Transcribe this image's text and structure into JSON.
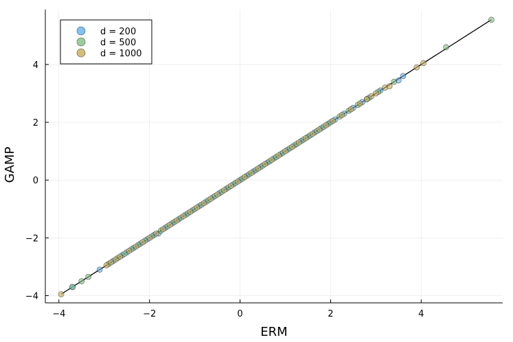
{
  "chart_data": {
    "type": "scatter",
    "title": "",
    "xlabel": "ERM",
    "ylabel": "GAMP",
    "xlim": [
      -4.3,
      5.8
    ],
    "ylim": [
      -4.25,
      5.9
    ],
    "xticks": [
      -4,
      -2,
      0,
      2,
      4
    ],
    "yticks": [
      -4,
      -2,
      0,
      2,
      4
    ],
    "xtick_labels": [
      "−4",
      "−2",
      "0",
      "2",
      "4"
    ],
    "ytick_labels": [
      "−4",
      "−2",
      "0",
      "2",
      "4"
    ],
    "grid": true,
    "legend": "top-left",
    "reference_line": {
      "x": [
        -3.95,
        5.55
      ],
      "y": [
        -3.95,
        5.55
      ],
      "color": "#000000"
    },
    "series": [
      {
        "name": "d = 200",
        "color": "#5fb3f0",
        "x": [
          -3.7,
          -3.1,
          -2.8,
          -2.6,
          -2.5,
          -2.35,
          -2.2,
          -2.05,
          -1.9,
          -1.8,
          -1.65,
          -1.5,
          -1.35,
          -1.2,
          -1.05,
          -0.9,
          -0.75,
          -0.6,
          -0.45,
          -0.3,
          -0.15,
          0.0,
          0.15,
          0.3,
          0.45,
          0.6,
          0.75,
          0.9,
          1.05,
          1.2,
          1.35,
          1.5,
          1.65,
          1.8,
          1.95,
          2.1,
          2.3,
          2.5,
          2.7,
          2.85,
          3.1,
          3.5,
          3.6
        ],
        "y": [
          -3.7,
          -3.1,
          -2.8,
          -2.6,
          -2.5,
          -2.35,
          -2.2,
          -2.05,
          -1.9,
          -1.85,
          -1.65,
          -1.5,
          -1.35,
          -1.2,
          -1.05,
          -0.9,
          -0.75,
          -0.6,
          -0.45,
          -0.3,
          -0.15,
          0.0,
          0.15,
          0.3,
          0.45,
          0.6,
          0.75,
          0.9,
          1.05,
          1.2,
          1.35,
          1.5,
          1.65,
          1.8,
          1.95,
          2.1,
          2.3,
          2.5,
          2.7,
          2.85,
          3.1,
          3.45,
          3.6
        ]
      },
      {
        "name": "d = 500",
        "color": "#80c080",
        "x": [
          -3.7,
          -3.35,
          -3.5,
          -2.9,
          -2.7,
          -2.55,
          -2.4,
          -2.25,
          -2.1,
          -1.95,
          -1.75,
          -1.6,
          -1.45,
          -1.3,
          -1.15,
          -1.0,
          -0.85,
          -0.7,
          -0.55,
          -0.4,
          -0.25,
          -0.1,
          0.05,
          0.2,
          0.35,
          0.5,
          0.65,
          0.8,
          0.95,
          1.1,
          1.25,
          1.4,
          1.55,
          1.7,
          1.85,
          2.0,
          2.2,
          2.4,
          2.6,
          2.8,
          3.05,
          3.4,
          4.55,
          5.55
        ],
        "y": [
          -3.7,
          -3.35,
          -3.5,
          -2.9,
          -2.7,
          -2.55,
          -2.4,
          -2.25,
          -2.1,
          -1.95,
          -1.75,
          -1.6,
          -1.45,
          -1.3,
          -1.15,
          -1.0,
          -0.85,
          -0.7,
          -0.55,
          -0.4,
          -0.25,
          -0.1,
          0.05,
          0.2,
          0.35,
          0.5,
          0.65,
          0.8,
          0.95,
          1.1,
          1.25,
          1.4,
          1.55,
          1.7,
          1.85,
          2.0,
          2.2,
          2.4,
          2.6,
          2.8,
          3.05,
          3.4,
          4.6,
          5.55
        ]
      },
      {
        "name": "d = 1000",
        "color": "#c8ac58",
        "x": [
          -3.95,
          -2.95,
          -2.85,
          -2.75,
          -2.65,
          -2.45,
          -2.3,
          -2.15,
          -2.0,
          -1.85,
          -1.7,
          -1.55,
          -1.4,
          -1.25,
          -1.1,
          -0.95,
          -0.8,
          -0.65,
          -0.5,
          -0.35,
          -0.2,
          -0.05,
          0.1,
          0.25,
          0.4,
          0.55,
          0.7,
          0.85,
          1.0,
          1.15,
          1.3,
          1.45,
          1.6,
          1.75,
          1.9,
          2.05,
          2.25,
          2.45,
          2.65,
          2.8,
          2.9,
          3.0,
          3.2,
          3.3,
          3.9,
          4.05
        ],
        "y": [
          -3.95,
          -2.95,
          -2.85,
          -2.75,
          -2.65,
          -2.45,
          -2.3,
          -2.15,
          -2.0,
          -1.85,
          -1.7,
          -1.55,
          -1.4,
          -1.25,
          -1.1,
          -0.95,
          -0.8,
          -0.65,
          -0.5,
          -0.35,
          -0.2,
          -0.05,
          0.1,
          0.25,
          0.4,
          0.55,
          0.7,
          0.85,
          1.0,
          1.15,
          1.3,
          1.45,
          1.6,
          1.75,
          1.9,
          2.05,
          2.25,
          2.45,
          2.65,
          2.8,
          2.9,
          3.0,
          3.2,
          3.25,
          3.9,
          4.05
        ]
      }
    ]
  }
}
